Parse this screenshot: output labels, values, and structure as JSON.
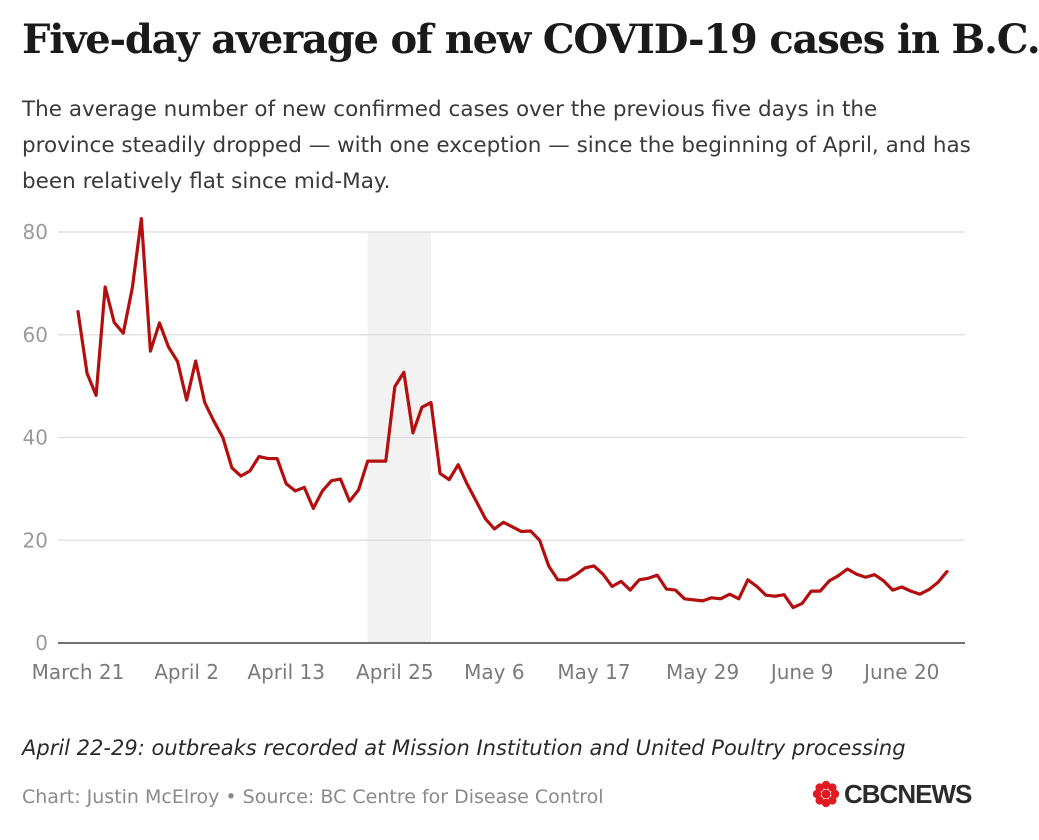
{
  "title": "Five-day average of new COVID-19 cases in B.C.",
  "subtitle": "The average number of new confirmed cases over the previous five days in the province steadily dropped — with one exception — since the beginning of April, and has been relatively flat since mid-May.",
  "annotation": "April 22-29: outbreaks recorded at Mission Institution and United Poultry processing",
  "credit": "Chart: Justin McElroy • Source: BC Centre for Disease Control",
  "logo": {
    "text": "CBCNEWS",
    "color": "#e11a22"
  },
  "colors": {
    "line": "#b30f0f",
    "highlight": "#f2f2f2",
    "grid": "#dddddd",
    "tick": "#9a9a9a",
    "axis": "#444444"
  },
  "chart_data": {
    "type": "line",
    "title": "Five-day average of new COVID-19 cases in B.C.",
    "xlabel": "",
    "ylabel": "",
    "ylim": [
      0,
      80
    ],
    "yticks": [
      "0",
      "20",
      "40",
      "60",
      "80"
    ],
    "xticks": [
      {
        "label": "March 21",
        "index": 0
      },
      {
        "label": "April 2",
        "index": 12
      },
      {
        "label": "April 13",
        "index": 23
      },
      {
        "label": "April 25",
        "index": 35
      },
      {
        "label": "May 6",
        "index": 46
      },
      {
        "label": "May 17",
        "index": 57
      },
      {
        "label": "May 29",
        "index": 69
      },
      {
        "label": "June 9",
        "index": 80
      },
      {
        "label": "June 20",
        "index": 91
      }
    ],
    "highlight": {
      "label": "April 22-29",
      "start_index": 32,
      "end_index": 39
    },
    "series": [
      {
        "name": "Five-day average of new cases",
        "start_date": "March 21",
        "values": [
          64.5,
          52.5,
          48.2,
          69.3,
          62.4,
          60.3,
          69.1,
          82.6,
          56.8,
          62.3,
          57.6,
          54.8,
          47.3,
          54.9,
          46.8,
          43.2,
          40,
          34.1,
          32.5,
          33.5,
          36.3,
          35.9,
          35.9,
          31,
          29.6,
          30.3,
          26.2,
          29.6,
          31.6,
          31.9,
          27.6,
          29.8,
          35.4,
          35.4,
          35.4,
          49.9,
          52.7,
          40.9,
          45.9,
          46.8,
          33,
          31.8,
          34.7,
          30.9,
          27.6,
          24.2,
          22.2,
          23.5,
          22.6,
          21.7,
          21.8,
          20,
          15,
          12.3,
          12.3,
          13.3,
          14.6,
          15,
          13.4,
          11,
          12,
          10.3,
          12.3,
          12.6,
          13.2,
          10.5,
          10.3,
          8.6,
          8.4,
          8.2,
          8.8,
          8.6,
          9.5,
          8.6,
          12.3,
          11,
          9.3,
          9.1,
          9.4,
          6.9,
          7.7,
          10.1,
          10.1,
          12.1,
          13.1,
          14.4,
          13.4,
          12.8,
          13.3,
          12.1,
          10.3,
          10.9,
          10.1,
          9.5,
          10.4,
          11.8,
          13.9
        ]
      }
    ]
  }
}
